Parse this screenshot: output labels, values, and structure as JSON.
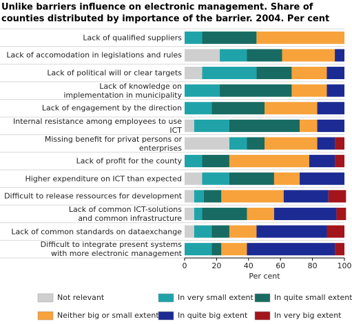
{
  "chart_data": {
    "type": "bar",
    "title": "Unlike barriers influence on electronic management. Share of counties distributed by importance of the barrier. 2004. Per cent",
    "x_label": "Per cent",
    "categories": [
      "Lack of qualified suppliers",
      "Lack of accomodation in legislations and rules",
      "Lack of political will or clear targets",
      "Lack of knowledge on\nimplementation in municipality",
      "Lack of engagement by the direction",
      "Internal resistance among employees to use ICT",
      "Missing benefit for privat persons or enterprises",
      "Lack of profit for the county",
      "Higher expenditure on ICT than expected",
      "Difficult to release ressources for development",
      "Lack of common ICT-solutions\nand common infrastructure",
      "Lack of common standards on dataexchange",
      "Difficult to integrate present systems\nwith more electronic management"
    ],
    "series": [
      {
        "name": "Not relevant",
        "color": "#cfcfcf",
        "values": [
          0,
          22,
          11,
          0,
          0,
          6,
          28,
          0,
          11,
          6,
          6,
          6,
          0
        ]
      },
      {
        "name": "In very small extent",
        "color": "#1fa3a8",
        "values": [
          11,
          17,
          34,
          22,
          17,
          22,
          11,
          11,
          17,
          6,
          5,
          11,
          17
        ]
      },
      {
        "name": "In quite small extent",
        "color": "#176b62",
        "values": [
          34,
          22,
          22,
          45,
          33,
          44,
          11,
          17,
          28,
          11,
          28,
          11,
          6
        ]
      },
      {
        "name": "Neither big or small extent",
        "color": "#f7a23a",
        "values": [
          55,
          33,
          22,
          22,
          33,
          11,
          33,
          50,
          16,
          39,
          17,
          17,
          16
        ]
      },
      {
        "name": "In quite big extent",
        "color": "#1c2b93",
        "values": [
          0,
          6,
          11,
          11,
          17,
          17,
          11,
          16,
          28,
          28,
          39,
          44,
          55
        ]
      },
      {
        "name": "In very big extent",
        "color": "#a3151b",
        "values": [
          0,
          0,
          0,
          0,
          0,
          0,
          6,
          6,
          0,
          11,
          6,
          11,
          6
        ]
      }
    ],
    "xlim": [
      0,
      100
    ],
    "xticks": [
      0,
      20,
      40,
      60,
      80,
      100
    ]
  }
}
